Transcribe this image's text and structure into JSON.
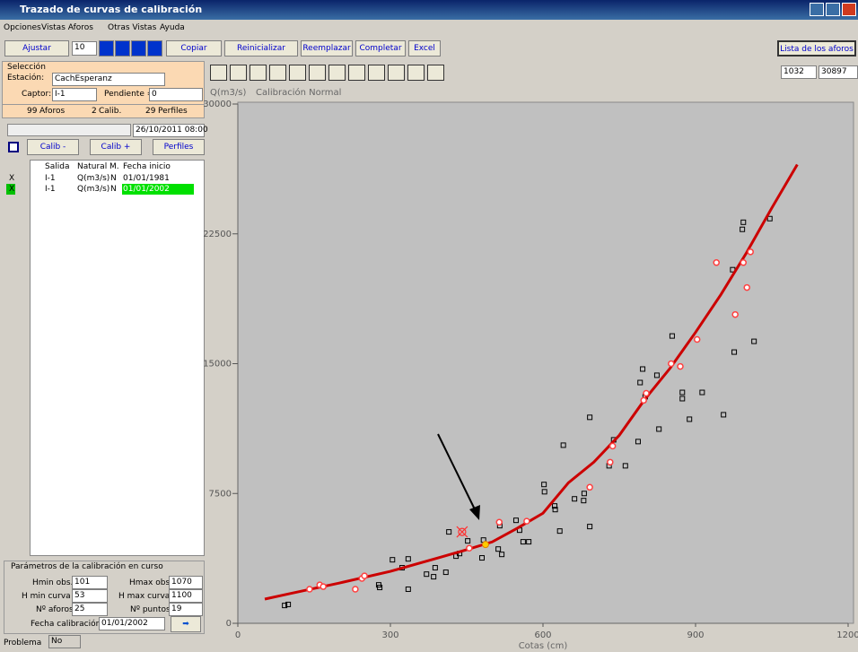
{
  "window": {
    "title": "Trazado de curvas de calibración"
  },
  "menu": [
    "Opciones",
    "Vistas Aforos",
    "Otras Vistas",
    "Ayuda"
  ],
  "toolbar": {
    "ajustar": "Ajustar",
    "step": 10,
    "copiar": "Copiar",
    "reinicializar": "Reinicializar",
    "reemplazar": "Reemplazar",
    "completar": "Completar",
    "excel": "Excel",
    "lista": "Lista de los aforos"
  },
  "selection": {
    "title": "Selección",
    "estacion_label": "Estación:",
    "estacion": "CachEsperanz",
    "captor_label": "Captor:",
    "captor": "I-1",
    "pendiente_label": "Pendiente =",
    "pendiente": 0,
    "aforos_count": 99,
    "aforos_label": "Aforos",
    "calib_count": 2,
    "calib_label": "Calib.",
    "perfiles_count": 29,
    "perfiles_label": "Perfiles",
    "date": "26/10/2011 08:00",
    "calib_minus": "Calib -",
    "calib_plus": "Calib +",
    "perfiles_button": "Perfiles"
  },
  "table": {
    "headers": [
      "Salida",
      "Natural",
      "M.",
      "Fecha inicio"
    ],
    "rows": [
      {
        "check": "X",
        "cells": [
          "I-1",
          "Q(m3/s)",
          "N",
          "01/01/1981"
        ]
      },
      {
        "check": "X",
        "cells": [
          "I-1",
          "Q(m3/s)",
          "N",
          "01/01/2002"
        ]
      }
    ]
  },
  "params": {
    "title": "Parámetros de la calibración en curso",
    "hmin_obs_label": "Hmin obs.",
    "hmin_obs": 101,
    "hmax_obs_label": "Hmax obs.",
    "hmax_obs": 1070,
    "hmin_curva_label": "H min curva",
    "hmin_curva": 53,
    "hmax_curva_label": "H max curva",
    "hmax_curva": 1100,
    "n_aforos_label": "Nº aforos",
    "n_aforos": 25,
    "n_puntos_label": "Nº puntos",
    "n_puntos": 19,
    "fecha_label": "Fecha calibración",
    "fecha": "01/01/2002",
    "problema_label": "Problema",
    "problema": "No"
  },
  "plot_toolbar": {
    "field1": 1032,
    "field2": 30897
  },
  "chart_data": {
    "type": "scatter",
    "y_label": "Q(m3/s)",
    "subtitle": "Calibración Normal",
    "x_label": "Cotas (cm)",
    "xlim": [
      0,
      1200
    ],
    "ylim": [
      0,
      30000
    ],
    "xticks": [
      0,
      300,
      600,
      900,
      1200
    ],
    "yticks": [
      0,
      7500,
      15000,
      22500,
      30000
    ],
    "series": [
      {
        "marker": "line",
        "color": "#cc0000",
        "x": [
          53,
          100,
          200,
          300,
          400,
          450,
          500,
          550,
          600,
          650,
          700,
          750,
          800,
          850,
          900,
          950,
          1000,
          1050,
          1100
        ],
        "values": [
          1400,
          1700,
          2330,
          3000,
          3830,
          4250,
          4700,
          5500,
          6360,
          8120,
          9310,
          10860,
          12930,
          14740,
          16810,
          19000,
          21400,
          24000,
          26500
        ]
      },
      {
        "marker": "square",
        "color": "#000000",
        "x": [
          92,
          99,
          277,
          279,
          304,
          323,
          335,
          335,
          371,
          385,
          388,
          409,
          415,
          429,
          436,
          452,
          480,
          483,
          512,
          515,
          519,
          547,
          554,
          561,
          572,
          602,
          603,
          623,
          624,
          633,
          640,
          662,
          680,
          681,
          692,
          692,
          730,
          739,
          762,
          787,
          791,
          796,
          801,
          824,
          828,
          854,
          874,
          874,
          888,
          913,
          955,
          976,
          973,
          992,
          994,
          1015,
          1046
        ],
        "values": [
          1030,
          1090,
          2220,
          2070,
          3670,
          3210,
          3720,
          1970,
          2840,
          2690,
          3210,
          2950,
          5280,
          3880,
          4030,
          4760,
          3780,
          4810,
          4290,
          5640,
          3980,
          5950,
          5380,
          4710,
          4710,
          8020,
          7600,
          6780,
          6570,
          5330,
          10290,
          7190,
          7090,
          7500,
          5590,
          11900,
          9100,
          10600,
          9100,
          10500,
          13910,
          14690,
          13090,
          14330,
          11220,
          16600,
          13340,
          12980,
          11790,
          13340,
          12050,
          15670,
          20430,
          22760,
          23170,
          16290,
          23380
        ]
      },
      {
        "marker": "circle",
        "color": "#ff4040",
        "x": [
          141,
          161,
          168,
          231,
          244,
          249,
          455,
          514,
          568,
          692,
          732,
          737,
          798,
          803,
          852,
          870,
          903,
          941,
          978,
          994,
          1001,
          1008
        ],
        "values": [
          1970,
          2220,
          2120,
          1970,
          2590,
          2740,
          4340,
          5840,
          5900,
          7860,
          9310,
          10240,
          12880,
          13290,
          15000,
          14840,
          16400,
          20840,
          17840,
          20840,
          19400,
          21460
        ]
      },
      {
        "marker": "filled-circle",
        "color": "#ffcc00",
        "x": [
          487
        ],
        "values": [
          4550
        ]
      },
      {
        "marker": "x",
        "color": "#ff3030",
        "x": [
          441
        ],
        "values": [
          5280
        ]
      }
    ]
  }
}
